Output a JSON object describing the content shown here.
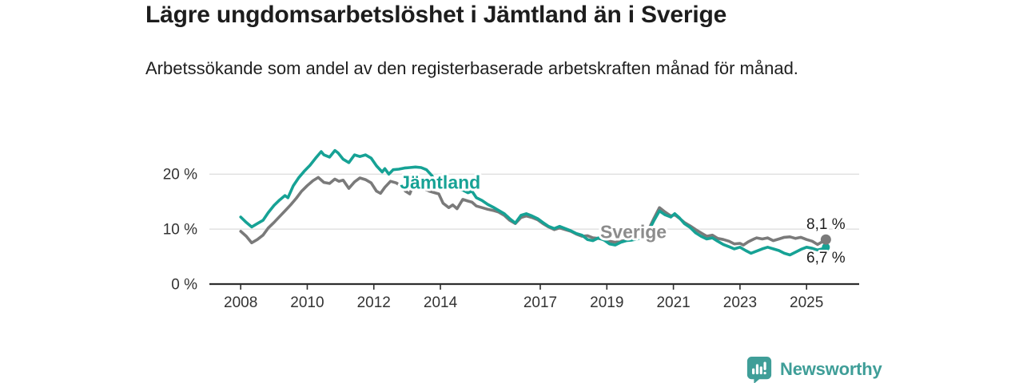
{
  "header": {
    "title": "Lägre ungdomsarbetslöshet i Jämtland än i Sverige",
    "subtitle": "Arbetssökande som andel av den registerbaserade arbetskraften månad för månad."
  },
  "footer": {
    "brand": "Newsworthy"
  },
  "colors": {
    "teal": "#16a295",
    "gray_line": "#7a7a7a",
    "gray_label": "#8c8c8c",
    "text_dark": "#1d1d1d",
    "axis_text": "#333333",
    "gridline": "#dcdcdc",
    "axis_line": "#2e2e2e",
    "logo_teal": "#3f9e98"
  },
  "chart_data": {
    "type": "line",
    "unit": "%",
    "grid": "horizontal",
    "legend_position": "inline-labels",
    "x_range": [
      2007.06,
      2026.58
    ],
    "y_range": [
      0,
      27
    ],
    "x_ticks": [
      {
        "year": 2008,
        "label": "2008"
      },
      {
        "year": 2010,
        "label": "2010"
      },
      {
        "year": 2012,
        "label": "2012"
      },
      {
        "year": 2014,
        "label": "2014"
      },
      {
        "year": 2017,
        "label": "2017"
      },
      {
        "year": 2019,
        "label": "2019"
      },
      {
        "year": 2021,
        "label": "2021"
      },
      {
        "year": 2023,
        "label": "2023"
      },
      {
        "year": 2025,
        "label": "2025"
      }
    ],
    "y_ticks": [
      {
        "value": 0,
        "label": "0 %"
      },
      {
        "value": 10,
        "label": "10 %"
      },
      {
        "value": 20,
        "label": "20 %"
      }
    ],
    "series": [
      {
        "name": "Sverige",
        "color": "#7a7a7a",
        "label_color": "#8c8c8c",
        "label_at": {
          "x": 2018.8,
          "y": 9.6
        },
        "end_label": "8,1 %",
        "end_value": 8.1,
        "end_label_dy": -13,
        "dot_radius": 6.5,
        "points": [
          [
            2008.0,
            9.6
          ],
          [
            2008.17,
            8.7
          ],
          [
            2008.33,
            7.5
          ],
          [
            2008.5,
            8.1
          ],
          [
            2008.67,
            8.9
          ],
          [
            2008.83,
            10.2
          ],
          [
            2009.0,
            11.2
          ],
          [
            2009.17,
            12.3
          ],
          [
            2009.33,
            13.3
          ],
          [
            2009.5,
            14.4
          ],
          [
            2009.67,
            15.6
          ],
          [
            2009.83,
            16.9
          ],
          [
            2010.0,
            17.9
          ],
          [
            2010.17,
            18.8
          ],
          [
            2010.33,
            19.4
          ],
          [
            2010.5,
            18.5
          ],
          [
            2010.67,
            18.3
          ],
          [
            2010.83,
            19.1
          ],
          [
            2010.95,
            18.7
          ],
          [
            2011.08,
            18.9
          ],
          [
            2011.25,
            17.4
          ],
          [
            2011.42,
            18.6
          ],
          [
            2011.58,
            19.3
          ],
          [
            2011.75,
            19.0
          ],
          [
            2011.92,
            18.4
          ],
          [
            2012.08,
            16.9
          ],
          [
            2012.2,
            16.5
          ],
          [
            2012.33,
            17.6
          ],
          [
            2012.5,
            18.7
          ],
          [
            2012.67,
            18.4
          ],
          [
            2012.83,
            17.8
          ],
          [
            2012.95,
            16.9
          ],
          [
            2013.08,
            16.4
          ],
          [
            2013.2,
            18.2
          ],
          [
            2013.33,
            17.8
          ],
          [
            2013.5,
            17.4
          ],
          [
            2013.67,
            16.9
          ],
          [
            2013.83,
            16.6
          ],
          [
            2013.95,
            16.4
          ],
          [
            2014.08,
            14.7
          ],
          [
            2014.25,
            13.9
          ],
          [
            2014.37,
            14.4
          ],
          [
            2014.5,
            13.7
          ],
          [
            2014.67,
            15.4
          ],
          [
            2014.83,
            15.1
          ],
          [
            2014.95,
            14.9
          ],
          [
            2015.08,
            14.2
          ],
          [
            2015.25,
            13.9
          ],
          [
            2015.42,
            13.6
          ],
          [
            2015.58,
            13.4
          ],
          [
            2015.75,
            13.1
          ],
          [
            2015.92,
            12.5
          ],
          [
            2016.08,
            11.6
          ],
          [
            2016.25,
            11.0
          ],
          [
            2016.42,
            12.1
          ],
          [
            2016.58,
            12.4
          ],
          [
            2016.75,
            12.1
          ],
          [
            2016.92,
            11.7
          ],
          [
            2017.08,
            11.0
          ],
          [
            2017.25,
            10.4
          ],
          [
            2017.42,
            9.9
          ],
          [
            2017.58,
            10.2
          ],
          [
            2017.75,
            9.9
          ],
          [
            2017.92,
            9.6
          ],
          [
            2018.08,
            9.1
          ],
          [
            2018.25,
            8.7
          ],
          [
            2018.42,
            8.8
          ],
          [
            2018.58,
            8.4
          ],
          [
            2018.75,
            8.3
          ],
          [
            2018.92,
            8.1
          ],
          [
            2019.08,
            7.8
          ],
          [
            2019.25,
            7.6
          ],
          [
            2019.42,
            7.8
          ],
          [
            2019.58,
            8.0
          ],
          [
            2019.75,
            8.2
          ],
          [
            2019.92,
            8.4
          ],
          [
            2020.08,
            8.8
          ],
          [
            2020.25,
            9.9
          ],
          [
            2020.42,
            12.0
          ],
          [
            2020.58,
            13.9
          ],
          [
            2020.75,
            13.1
          ],
          [
            2020.92,
            12.4
          ],
          [
            2021.04,
            12.6
          ],
          [
            2021.17,
            12.0
          ],
          [
            2021.33,
            11.2
          ],
          [
            2021.5,
            10.6
          ],
          [
            2021.67,
            9.9
          ],
          [
            2021.83,
            9.3
          ],
          [
            2022.0,
            8.7
          ],
          [
            2022.17,
            8.9
          ],
          [
            2022.33,
            8.3
          ],
          [
            2022.5,
            8.1
          ],
          [
            2022.67,
            7.8
          ],
          [
            2022.83,
            7.3
          ],
          [
            2023.0,
            7.4
          ],
          [
            2023.1,
            7.1
          ],
          [
            2023.25,
            7.7
          ],
          [
            2023.42,
            8.2
          ],
          [
            2023.5,
            8.4
          ],
          [
            2023.67,
            8.2
          ],
          [
            2023.83,
            8.4
          ],
          [
            2024.0,
            7.9
          ],
          [
            2024.17,
            8.2
          ],
          [
            2024.33,
            8.5
          ],
          [
            2024.5,
            8.6
          ],
          [
            2024.67,
            8.3
          ],
          [
            2024.83,
            8.5
          ],
          [
            2025.0,
            8.1
          ],
          [
            2025.17,
            7.8
          ],
          [
            2025.33,
            7.2
          ],
          [
            2025.47,
            7.7
          ],
          [
            2025.58,
            8.1
          ]
        ]
      },
      {
        "name": "Jämtland",
        "color": "#16a295",
        "label_color": "#16a295",
        "label_at": {
          "x": 2012.78,
          "y": 18.6
        },
        "end_label": "6,7 %",
        "end_value": 6.7,
        "end_label_dy": 19,
        "dot_radius": 5,
        "points": [
          [
            2008.0,
            12.2
          ],
          [
            2008.17,
            11.2
          ],
          [
            2008.33,
            10.4
          ],
          [
            2008.5,
            11.0
          ],
          [
            2008.67,
            11.6
          ],
          [
            2008.83,
            13.0
          ],
          [
            2009.0,
            14.3
          ],
          [
            2009.17,
            15.3
          ],
          [
            2009.33,
            16.1
          ],
          [
            2009.42,
            15.7
          ],
          [
            2009.58,
            17.9
          ],
          [
            2009.75,
            19.4
          ],
          [
            2009.92,
            20.6
          ],
          [
            2010.08,
            21.6
          ],
          [
            2010.25,
            22.9
          ],
          [
            2010.42,
            24.1
          ],
          [
            2010.5,
            23.5
          ],
          [
            2010.67,
            23.1
          ],
          [
            2010.83,
            24.3
          ],
          [
            2010.92,
            23.9
          ],
          [
            2011.08,
            22.7
          ],
          [
            2011.25,
            22.1
          ],
          [
            2011.42,
            23.5
          ],
          [
            2011.58,
            23.2
          ],
          [
            2011.75,
            23.5
          ],
          [
            2011.92,
            22.9
          ],
          [
            2012.08,
            21.5
          ],
          [
            2012.25,
            20.4
          ],
          [
            2012.33,
            21.0
          ],
          [
            2012.45,
            20.0
          ],
          [
            2012.58,
            20.8
          ],
          [
            2012.75,
            20.9
          ],
          [
            2012.92,
            21.1
          ],
          [
            2013.08,
            21.2
          ],
          [
            2013.25,
            21.3
          ],
          [
            2013.42,
            21.2
          ],
          [
            2013.58,
            20.8
          ],
          [
            2013.75,
            19.7
          ],
          [
            2013.87,
            18.2
          ],
          [
            2013.95,
            17.6
          ],
          [
            2014.08,
            18.0
          ],
          [
            2014.2,
            17.3
          ],
          [
            2014.33,
            17.9
          ],
          [
            2014.5,
            17.3
          ],
          [
            2014.67,
            17.1
          ],
          [
            2014.83,
            16.6
          ],
          [
            2014.95,
            16.9
          ],
          [
            2015.08,
            15.7
          ],
          [
            2015.25,
            15.2
          ],
          [
            2015.42,
            14.5
          ],
          [
            2015.58,
            14.0
          ],
          [
            2015.75,
            13.4
          ],
          [
            2015.92,
            12.8
          ],
          [
            2016.08,
            11.9
          ],
          [
            2016.25,
            11.1
          ],
          [
            2016.42,
            12.5
          ],
          [
            2016.58,
            12.8
          ],
          [
            2016.75,
            12.4
          ],
          [
            2016.92,
            11.9
          ],
          [
            2017.08,
            11.2
          ],
          [
            2017.25,
            10.5
          ],
          [
            2017.42,
            10.1
          ],
          [
            2017.58,
            10.5
          ],
          [
            2017.75,
            10.1
          ],
          [
            2017.92,
            9.7
          ],
          [
            2018.08,
            9.2
          ],
          [
            2018.25,
            8.9
          ],
          [
            2018.42,
            8.1
          ],
          [
            2018.58,
            7.9
          ],
          [
            2018.75,
            8.4
          ],
          [
            2018.92,
            8.0
          ],
          [
            2019.08,
            7.3
          ],
          [
            2019.25,
            7.1
          ],
          [
            2019.42,
            7.6
          ],
          [
            2019.58,
            7.9
          ],
          [
            2019.75,
            8.0
          ],
          [
            2019.92,
            8.2
          ],
          [
            2020.08,
            8.6
          ],
          [
            2020.25,
            9.6
          ],
          [
            2020.42,
            11.6
          ],
          [
            2020.58,
            13.3
          ],
          [
            2020.75,
            12.6
          ],
          [
            2020.92,
            12.2
          ],
          [
            2021.04,
            12.8
          ],
          [
            2021.17,
            12.1
          ],
          [
            2021.33,
            11.0
          ],
          [
            2021.5,
            10.3
          ],
          [
            2021.67,
            9.3
          ],
          [
            2021.83,
            8.7
          ],
          [
            2022.0,
            8.2
          ],
          [
            2022.17,
            8.4
          ],
          [
            2022.33,
            7.8
          ],
          [
            2022.5,
            7.2
          ],
          [
            2022.67,
            6.8
          ],
          [
            2022.83,
            6.4
          ],
          [
            2023.0,
            6.7
          ],
          [
            2023.17,
            6.1
          ],
          [
            2023.33,
            5.6
          ],
          [
            2023.5,
            6.0
          ],
          [
            2023.67,
            6.4
          ],
          [
            2023.83,
            6.7
          ],
          [
            2024.0,
            6.4
          ],
          [
            2024.17,
            6.1
          ],
          [
            2024.33,
            5.6
          ],
          [
            2024.5,
            5.3
          ],
          [
            2024.67,
            5.8
          ],
          [
            2024.83,
            6.3
          ],
          [
            2025.0,
            6.7
          ],
          [
            2025.17,
            6.5
          ],
          [
            2025.33,
            6.2
          ],
          [
            2025.47,
            6.4
          ],
          [
            2025.58,
            6.7
          ]
        ]
      }
    ]
  }
}
